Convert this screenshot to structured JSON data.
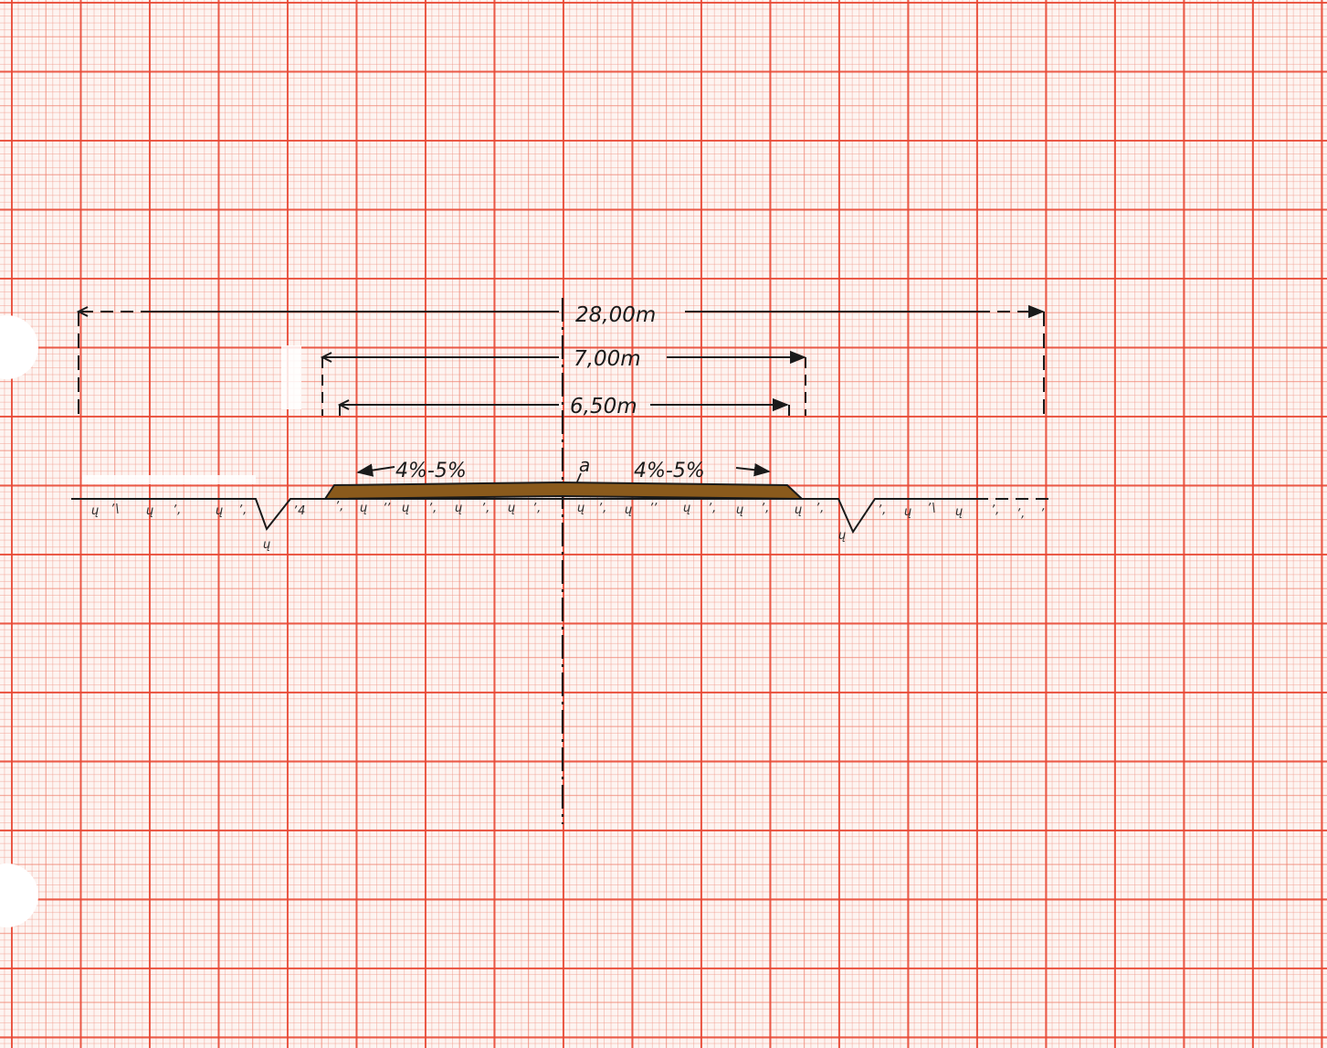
{
  "diagram": {
    "dimensions": {
      "total_width": "28,00m",
      "carriageway_width": "7,00m",
      "paved_width": "6,50m"
    },
    "slopes": {
      "left": "4%-5%",
      "right": "4%-5%"
    },
    "axis_label": "a",
    "colors": {
      "pavement": "#8a5a1c",
      "ink": "#1a1a1a"
    }
  }
}
